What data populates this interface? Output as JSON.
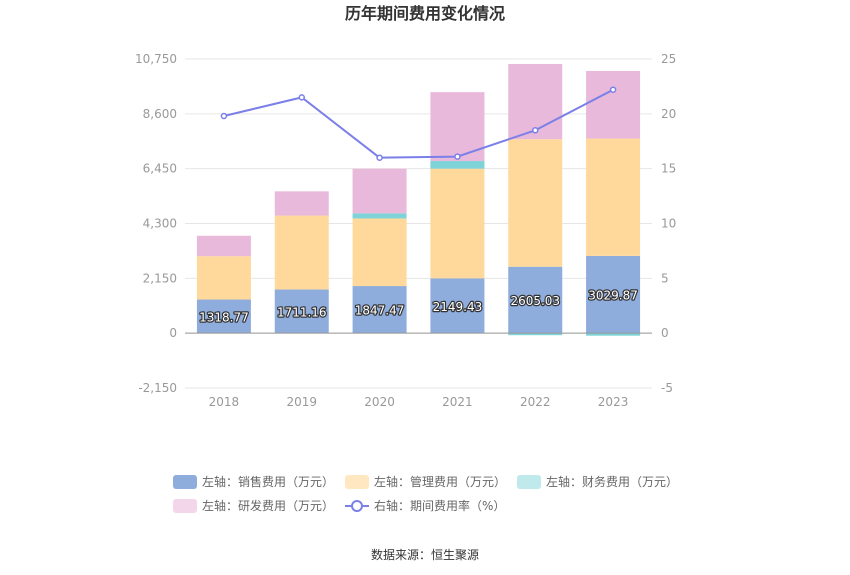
{
  "chart_data": {
    "type": "bar",
    "title": "历年期间费用变化情况",
    "categories": [
      "2018",
      "2019",
      "2020",
      "2021",
      "2022",
      "2023"
    ],
    "left_axis": {
      "ylim": [
        -2150,
        10750
      ],
      "ticks": [
        "-2,150",
        "0",
        "2,150",
        "4,300",
        "6,450",
        "8,600",
        "10,750"
      ],
      "tick_values": [
        -2150,
        0,
        2150,
        4300,
        6450,
        8600,
        10750
      ]
    },
    "right_axis": {
      "ylim": [
        -5,
        25
      ],
      "ticks": [
        "-5",
        "0",
        "5",
        "10",
        "15",
        "20",
        "25"
      ],
      "tick_values": [
        -5,
        0,
        5,
        10,
        15,
        20,
        25
      ]
    },
    "series": [
      {
        "name": "左轴：销售费用（万元）",
        "type": "bar",
        "color": "#8eacdc",
        "values": [
          1318.77,
          1711.16,
          1847.47,
          2149.43,
          2605.03,
          3029.87
        ],
        "labels": [
          "1318.77",
          "1711.16",
          "1847.47",
          "2149.43",
          "2605.03",
          "3029.87"
        ]
      },
      {
        "name": "左轴：管理费用（万元）",
        "type": "bar",
        "color": "#ffd99b",
        "values": [
          1700,
          2900,
          2650,
          4300,
          5000,
          4600
        ]
      },
      {
        "name": "左轴：财务费用（万元）",
        "type": "bar",
        "color": "#7dd3d8",
        "values": [
          0,
          0,
          200,
          300,
          -80,
          -100
        ]
      },
      {
        "name": "左轴：研发费用（万元）",
        "type": "bar",
        "color": "#e8b9da",
        "values": [
          800,
          950,
          1750,
          2700,
          2950,
          2650
        ]
      },
      {
        "name": "右轴：期间费用率（%）",
        "type": "line",
        "color": "#7b7fe8",
        "values": [
          19.8,
          21.5,
          16.0,
          16.1,
          18.5,
          22.2
        ]
      }
    ],
    "grid": true,
    "legend_position": "bottom"
  },
  "footer": {
    "source": "数据来源：恒生聚源"
  }
}
